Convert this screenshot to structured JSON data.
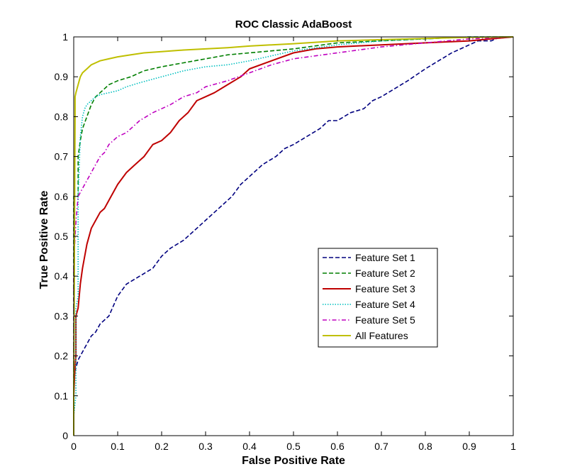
{
  "chart_data": {
    "type": "line",
    "title": "ROC Classic AdaBoost",
    "xlabel": "False Positive Rate",
    "ylabel": "True Positive Rate",
    "xlim": [
      0,
      1
    ],
    "ylim": [
      0,
      1
    ],
    "xticks": [
      "0",
      "0.1",
      "0.2",
      "0.3",
      "0.4",
      "0.5",
      "0.6",
      "0.7",
      "0.8",
      "0.9",
      "1"
    ],
    "yticks": [
      "0",
      "0.1",
      "0.2",
      "0.3",
      "0.4",
      "0.5",
      "0.6",
      "0.7",
      "0.8",
      "0.9",
      "1"
    ],
    "grid": false,
    "legend_position": "lower-right",
    "series": [
      {
        "name": "Feature Set 1",
        "color": "#00007f",
        "dash": "dashed",
        "x": [
          0,
          0.0,
          0.005,
          0.01,
          0.02,
          0.03,
          0.04,
          0.05,
          0.06,
          0.08,
          0.1,
          0.12,
          0.15,
          0.18,
          0.2,
          0.22,
          0.25,
          0.28,
          0.3,
          0.33,
          0.36,
          0.38,
          0.4,
          0.43,
          0.46,
          0.48,
          0.5,
          0.53,
          0.56,
          0.58,
          0.6,
          0.63,
          0.66,
          0.68,
          0.7,
          0.73,
          0.76,
          0.8,
          0.83,
          0.86,
          0.88,
          0.9,
          0.92,
          0.95,
          0.97,
          1.0
        ],
        "y": [
          0,
          0.15,
          0.17,
          0.19,
          0.21,
          0.23,
          0.25,
          0.26,
          0.28,
          0.3,
          0.35,
          0.38,
          0.4,
          0.42,
          0.45,
          0.47,
          0.49,
          0.52,
          0.54,
          0.57,
          0.6,
          0.63,
          0.65,
          0.68,
          0.7,
          0.72,
          0.73,
          0.75,
          0.77,
          0.79,
          0.79,
          0.81,
          0.82,
          0.84,
          0.85,
          0.87,
          0.89,
          0.92,
          0.94,
          0.96,
          0.97,
          0.98,
          0.99,
          0.99,
          1.0,
          1.0
        ]
      },
      {
        "name": "Feature Set 2",
        "color": "#007f00",
        "dash": "dashed",
        "x": [
          0,
          0.0,
          0.0,
          0.01,
          0.01,
          0.015,
          0.02,
          0.03,
          0.04,
          0.05,
          0.06,
          0.08,
          0.1,
          0.13,
          0.16,
          0.2,
          0.25,
          0.3,
          0.35,
          0.4,
          0.45,
          0.5,
          0.6,
          0.7,
          0.8,
          0.9,
          0.95,
          1.0
        ],
        "y": [
          0,
          0.5,
          0.6,
          0.6,
          0.7,
          0.74,
          0.77,
          0.8,
          0.83,
          0.85,
          0.86,
          0.88,
          0.89,
          0.9,
          0.915,
          0.925,
          0.935,
          0.945,
          0.955,
          0.96,
          0.965,
          0.97,
          0.985,
          0.99,
          0.995,
          1.0,
          1.0,
          1.0
        ]
      },
      {
        "name": "Feature Set 3",
        "color": "#bf0000",
        "dash": "solid",
        "x": [
          0,
          0.0,
          0.002,
          0.005,
          0.005,
          0.01,
          0.015,
          0.02,
          0.025,
          0.03,
          0.04,
          0.05,
          0.06,
          0.07,
          0.08,
          0.1,
          0.12,
          0.14,
          0.16,
          0.18,
          0.2,
          0.22,
          0.24,
          0.26,
          0.28,
          0.3,
          0.32,
          0.35,
          0.38,
          0.4,
          0.45,
          0.5,
          0.55,
          0.6,
          0.7,
          0.8,
          0.9,
          0.95,
          1.0
        ],
        "y": [
          0,
          0.1,
          0.15,
          0.2,
          0.3,
          0.32,
          0.38,
          0.42,
          0.45,
          0.48,
          0.52,
          0.54,
          0.56,
          0.57,
          0.59,
          0.63,
          0.66,
          0.68,
          0.7,
          0.73,
          0.74,
          0.76,
          0.79,
          0.81,
          0.84,
          0.85,
          0.86,
          0.88,
          0.9,
          0.92,
          0.94,
          0.96,
          0.97,
          0.975,
          0.98,
          0.985,
          0.99,
          0.995,
          1.0
        ]
      },
      {
        "name": "Feature Set 4",
        "color": "#00bfbf",
        "dash": "dotted",
        "x": [
          0,
          0.0,
          0.005,
          0.005,
          0.01,
          0.01,
          0.015,
          0.02,
          0.025,
          0.03,
          0.04,
          0.05,
          0.06,
          0.08,
          0.1,
          0.12,
          0.15,
          0.2,
          0.25,
          0.3,
          0.35,
          0.4,
          0.5,
          0.6,
          0.7,
          0.8,
          0.9,
          1.0
        ],
        "y": [
          0,
          0.05,
          0.1,
          0.32,
          0.35,
          0.6,
          0.75,
          0.8,
          0.82,
          0.83,
          0.84,
          0.85,
          0.855,
          0.86,
          0.865,
          0.875,
          0.885,
          0.9,
          0.915,
          0.925,
          0.93,
          0.94,
          0.965,
          0.98,
          0.99,
          0.995,
          1.0,
          1.0
        ]
      },
      {
        "name": "Feature Set 5",
        "color": "#bf00bf",
        "dash": "dashdot",
        "x": [
          0,
          0.0,
          0.003,
          0.006,
          0.01,
          0.015,
          0.02,
          0.03,
          0.04,
          0.05,
          0.06,
          0.07,
          0.08,
          0.1,
          0.12,
          0.15,
          0.18,
          0.2,
          0.22,
          0.25,
          0.28,
          0.3,
          0.35,
          0.4,
          0.45,
          0.5,
          0.6,
          0.7,
          0.8,
          0.9,
          1.0
        ],
        "y": [
          0,
          0.42,
          0.5,
          0.55,
          0.6,
          0.61,
          0.62,
          0.64,
          0.66,
          0.68,
          0.7,
          0.71,
          0.73,
          0.75,
          0.76,
          0.79,
          0.81,
          0.82,
          0.83,
          0.85,
          0.86,
          0.875,
          0.89,
          0.91,
          0.93,
          0.945,
          0.96,
          0.975,
          0.985,
          0.995,
          1.0
        ]
      },
      {
        "name": "All Features",
        "color": "#bfbf00",
        "dash": "solid",
        "x": [
          0,
          0.0,
          0.003,
          0.003,
          0.005,
          0.01,
          0.015,
          0.02,
          0.03,
          0.04,
          0.05,
          0.06,
          0.08,
          0.1,
          0.13,
          0.16,
          0.2,
          0.25,
          0.3,
          0.35,
          0.4,
          0.5,
          0.6,
          0.7,
          0.8,
          0.9,
          1.0
        ],
        "y": [
          0,
          0.1,
          0.8,
          0.85,
          0.86,
          0.88,
          0.9,
          0.91,
          0.92,
          0.93,
          0.935,
          0.94,
          0.945,
          0.95,
          0.955,
          0.96,
          0.963,
          0.967,
          0.97,
          0.973,
          0.977,
          0.983,
          0.99,
          0.993,
          0.996,
          0.999,
          1.0
        ]
      }
    ]
  }
}
